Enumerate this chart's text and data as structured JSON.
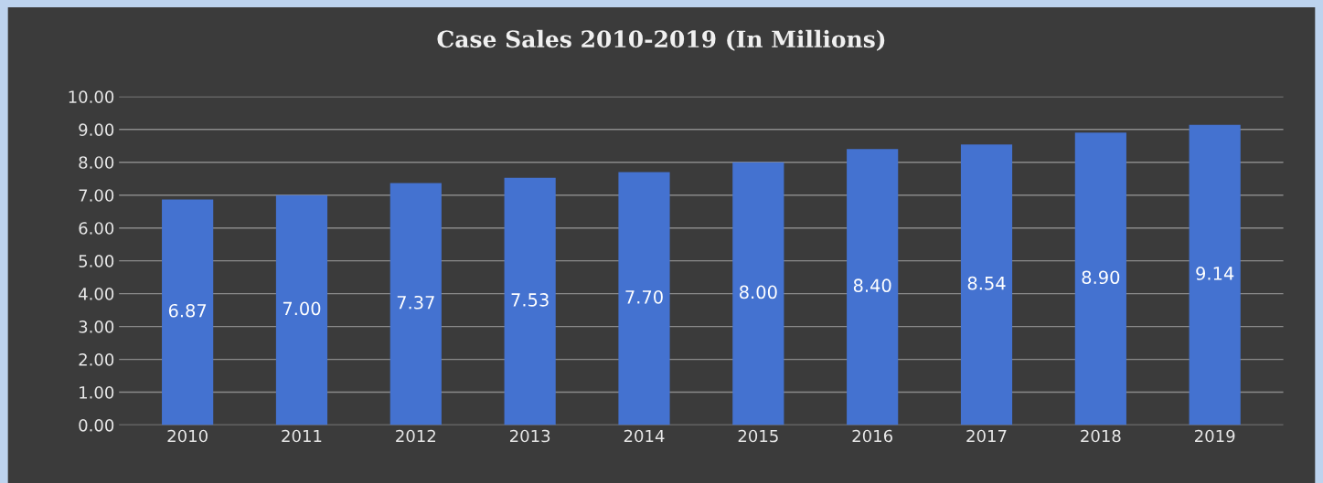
{
  "chart_data": {
    "type": "bar",
    "title": "Case Sales 2010-2019 (In Millions)",
    "categories": [
      "2010",
      "2011",
      "2012",
      "2013",
      "2014",
      "2015",
      "2016",
      "2017",
      "2018",
      "2019"
    ],
    "values": [
      6.87,
      7.0,
      7.37,
      7.53,
      7.7,
      8.0,
      8.4,
      8.54,
      8.9,
      9.14
    ],
    "value_labels": [
      "6.87",
      "7.00",
      "7.37",
      "7.53",
      "7.70",
      "8.00",
      "8.40",
      "8.54",
      "8.90",
      "9.14"
    ],
    "color": "#4472d0",
    "ylim": [
      0,
      10
    ],
    "yticks": [
      {
        "value": 0,
        "label": "0.00"
      },
      {
        "value": 1,
        "label": "1.00"
      },
      {
        "value": 2,
        "label": "2.00"
      },
      {
        "value": 3,
        "label": "3.00"
      },
      {
        "value": 4,
        "label": "4.00"
      },
      {
        "value": 5,
        "label": "5.00"
      },
      {
        "value": 6,
        "label": "6.00"
      },
      {
        "value": 7,
        "label": "7.00"
      },
      {
        "value": 8,
        "label": "8.00"
      },
      {
        "value": 9,
        "label": "9.00"
      },
      {
        "value": 10,
        "label": "10.00"
      }
    ],
    "grid": "y"
  }
}
